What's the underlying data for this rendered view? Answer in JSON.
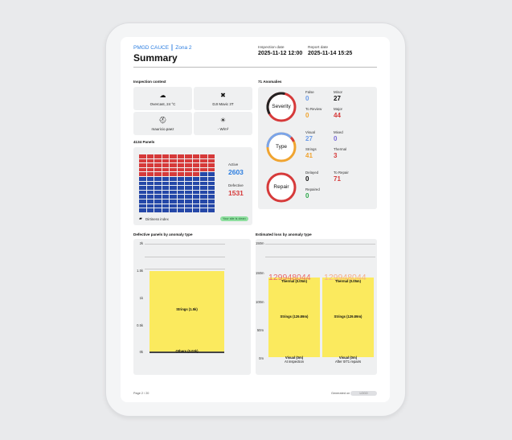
{
  "header": {
    "brand": "PMGD CAUCE ║ Zona 2",
    "title": "Summary",
    "inspection_date_label": "Inspection date",
    "inspection_date": "2025-11-12 12:00",
    "report_date_label": "Report date",
    "report_date": "2025-11-14 15:25"
  },
  "context": {
    "title": "Inspection context",
    "items": [
      {
        "icon": "cloud-icon",
        "glyph": "☁",
        "text": "Overcast, 24 °C"
      },
      {
        "icon": "drone-icon",
        "glyph": "✖",
        "text": "DJI Mavic 3T"
      },
      {
        "icon": "pilot-helmet-icon",
        "glyph": "⛑",
        "text": "mauricio.paez"
      },
      {
        "icon": "irradiance-icon",
        "glyph": "☀",
        "text": "- W/m²"
      }
    ]
  },
  "panels": {
    "title": "4134 Panels",
    "active_label": "Active",
    "active_value": "2603",
    "defective_label": "Defective",
    "defective_value": "1531",
    "dirtiness_label": "Dirtiness index",
    "dirtiness_badge": "Your site is clean",
    "colors": {
      "defective": "#d63a3a",
      "active": "#2548a8"
    }
  },
  "anomalies": {
    "title": "71 Anomalies",
    "severity": {
      "label": "Severity",
      "false_label": "False",
      "false_value": "0",
      "minor_label": "Minor",
      "minor_value": "27",
      "review_label": "To Review",
      "review_value": "0",
      "major_label": "Major",
      "major_value": "44"
    },
    "type": {
      "label": "Type",
      "visual_label": "Visual",
      "visual_value": "27",
      "mixed_label": "Mixed",
      "mixed_value": "0",
      "strings_label": "Strings",
      "strings_value": "41",
      "thermal_label": "Thermal",
      "thermal_value": "3"
    },
    "repair": {
      "label": "Repair",
      "delayed_label": "Delayed",
      "delayed_value": "0",
      "torepair_label": "To Repair",
      "torepair_value": "71",
      "repaired_label": "Repaired",
      "repaired_value": "0"
    }
  },
  "defective_chart": {
    "title": "Defective panels by anomaly type",
    "ticks": [
      "2k",
      "1.5k",
      "1k",
      "0.5k",
      "0k"
    ],
    "bar_label": "Strings (1.5k)",
    "bottom_label": "Others (0.03k)"
  },
  "loss_chart": {
    "title": "Estimated loss by anomaly type",
    "ticks": [
      "150m",
      "100m",
      "50m",
      "0m"
    ],
    "total_left": "129948044",
    "total_right": "129948044",
    "thermal_label": "Thermal (0.05m)",
    "strings_label": "Strings (129.89m)",
    "visual_label": "Visual (0m)",
    "categories": [
      "At inspection",
      "After 0/71 repairs"
    ]
  },
  "footer": {
    "page": "Page 2 / 20",
    "generated": "Generated on",
    "logo_text": "LOGO"
  },
  "chart_data": [
    {
      "type": "bar",
      "title": "Defective panels by anomaly type",
      "series": [
        {
          "name": "Strings",
          "values": [
            1500
          ]
        },
        {
          "name": "Others",
          "values": [
            30
          ]
        }
      ],
      "ylim": [
        0,
        2000
      ]
    },
    {
      "type": "bar",
      "title": "Estimated loss by anomaly type",
      "categories": [
        "At inspection",
        "After 0/71 repairs"
      ],
      "series": [
        {
          "name": "Visual",
          "values": [
            0,
            0
          ]
        },
        {
          "name": "Strings",
          "values": [
            129.89,
            129.89
          ]
        },
        {
          "name": "Thermal",
          "values": [
            0.05,
            0.05
          ]
        }
      ],
      "ylim": [
        0,
        150
      ]
    }
  ]
}
